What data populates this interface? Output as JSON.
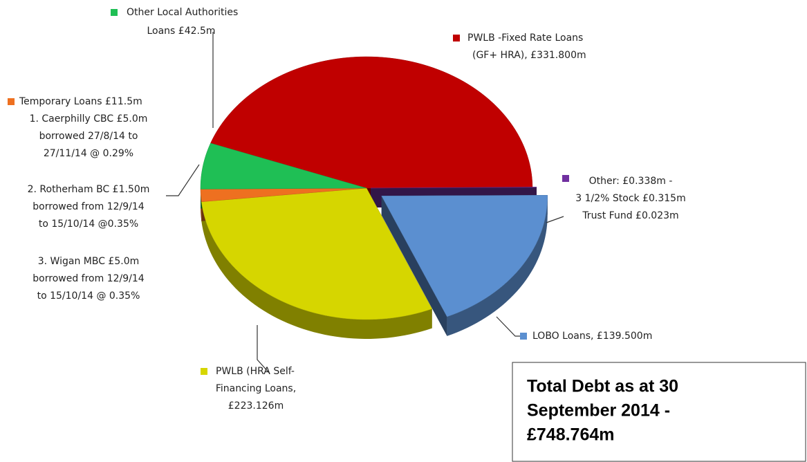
{
  "chart_data": {
    "type": "pie",
    "labels": [
      [
        "PWLB -Fixed Rate Loans",
        "(GF+ HRA), £331.800m"
      ],
      [
        "Other: £0.338m -",
        "3 1/2% Stock £0.315m",
        "Trust Fund £0.023m"
      ],
      [
        "LOBO Loans, £139.500m"
      ],
      [
        "PWLB (HRA Self-",
        "Financing Loans,",
        "£223.126m"
      ],
      [
        "Temporary Loans £11.5m",
        "1. Caerphilly CBC £5.0m",
        "borrowed 27/8/14 to",
        "27/11/14 @ 0.29%"
      ],
      [
        "Other Local Authorities",
        "Loans £42.5m"
      ]
    ],
    "values": [
      331.8,
      0.338,
      139.5,
      223.126,
      11.5,
      42.5
    ],
    "colors": [
      "#c00000",
      "#7030a0",
      "#5b8fd0",
      "#d6d600",
      "#ee7020",
      "#1fbf55"
    ],
    "notes": [
      [
        "2. Rotherham BC £1.50m",
        "borrowed from 12/9/14",
        "to 15/10/14 @0.35%"
      ],
      [
        "3. Wigan MBC £5.0m",
        "borrowed from 12/9/14",
        "to 15/10/14 @ 0.35%"
      ]
    ],
    "annotation": [
      "Total Debt as at 30",
      "September 2014 -",
      "£748.764m"
    ]
  }
}
